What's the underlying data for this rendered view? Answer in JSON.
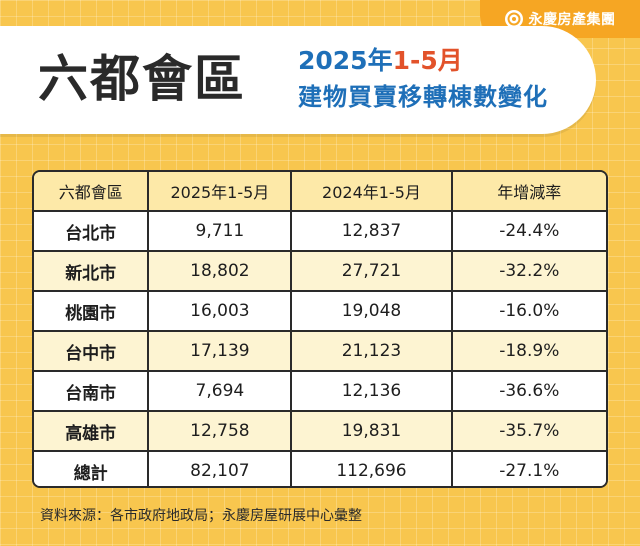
{
  "logo": {
    "text": "永慶房產集團",
    "icon": "yungching-logo-icon"
  },
  "title": {
    "main": "六都會區",
    "year_prefix": "2025年",
    "year_highlight": "1-5月",
    "description": "建物買賣移轉棟數變化"
  },
  "table": {
    "headers": [
      "六都會區",
      "2025年1-5月",
      "2024年1-5月",
      "年增減率"
    ],
    "rows": [
      [
        "台北市",
        "9,711",
        "12,837",
        "-24.4%"
      ],
      [
        "新北市",
        "18,802",
        "27,721",
        "-32.2%"
      ],
      [
        "桃園市",
        "16,003",
        "19,048",
        "-16.0%"
      ],
      [
        "台中市",
        "17,139",
        "21,123",
        "-18.9%"
      ],
      [
        "台南市",
        "7,694",
        "12,136",
        "-36.6%"
      ],
      [
        "高雄市",
        "12,758",
        "19,831",
        "-35.7%"
      ],
      [
        "總計",
        "82,107",
        "112,696",
        "-27.1%"
      ]
    ]
  },
  "source": "資料來源：各市政府地政局；永慶房屋研展中心彙整",
  "colors": {
    "background": "#f8c64e",
    "logo_bg": "#f6a623",
    "title_blue": "#1e6fb8",
    "title_accent": "#e2522a",
    "header_row": "#fde9a8",
    "alt_row": "#fdf4d2"
  }
}
